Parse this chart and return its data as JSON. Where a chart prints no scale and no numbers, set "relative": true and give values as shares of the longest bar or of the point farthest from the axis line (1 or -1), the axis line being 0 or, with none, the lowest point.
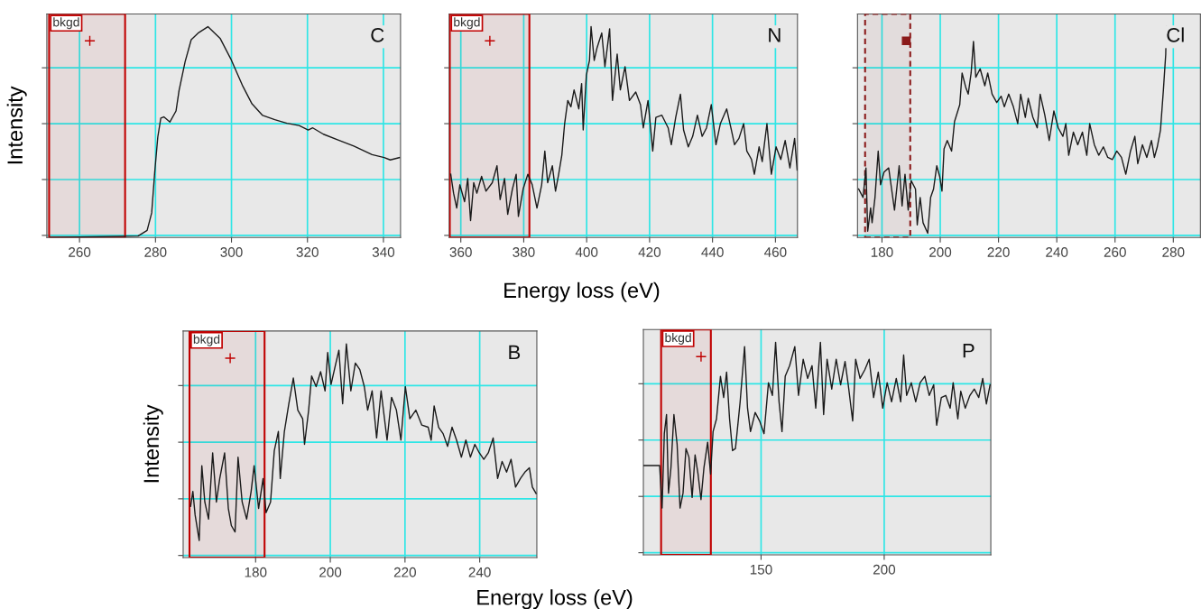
{
  "chart_data": [
    {
      "type": "line",
      "annotations": [
        "C"
      ],
      "ylabel": "Intensity",
      "relative": true,
      "grid": true,
      "tick_labels": "x",
      "color": "#1a1a1a",
      "xlim": [
        251.4,
        344.5
      ],
      "xticks": [
        260,
        280,
        300,
        320,
        340
      ],
      "bands": [
        {
          "axis": "x",
          "from": 252,
          "to": 272,
          "label": "bkgd",
          "color": "#c00000"
        }
      ],
      "x": [
        252.2,
        275.4,
        277.8,
        279,
        279.8,
        280.6,
        281.4,
        282.2,
        283.8,
        285.4,
        286.2,
        287.8,
        289.4,
        291.4,
        293.8,
        297,
        299.8,
        303,
        305.4,
        308.2,
        311.4,
        314.6,
        317.8,
        320.2,
        321.4,
        324.2,
        328.2,
        332.2,
        337,
        340.2,
        341.8,
        344.2
      ],
      "values": [
        0,
        0.007,
        0.034,
        0.117,
        0.31,
        0.476,
        0.566,
        0.572,
        0.548,
        0.6,
        0.697,
        0.834,
        0.938,
        0.972,
        1,
        0.945,
        0.848,
        0.717,
        0.634,
        0.579,
        0.559,
        0.542,
        0.531,
        0.51,
        0.52,
        0.49,
        0.462,
        0.434,
        0.393,
        0.379,
        0.368,
        0.379
      ]
    },
    {
      "type": "line",
      "annotations": [
        "N"
      ],
      "xlabel": "Energy loss (eV)",
      "relative": true,
      "grid": true,
      "tick_labels": "x",
      "color": "#1a1a1a",
      "xlim": [
        356.3,
        467
      ],
      "xticks": [
        360,
        380,
        400,
        420,
        440,
        460
      ],
      "bands": [
        {
          "axis": "x",
          "from": 356.5,
          "to": 381.8,
          "label": "bkgd",
          "color": "#c00000"
        }
      ],
      "x": [
        356.8,
        357.7,
        358.7,
        359.7,
        361.2,
        362.2,
        363.1,
        364.1,
        365.1,
        366.6,
        368.0,
        370.0,
        371.5,
        372.5,
        373.9,
        374.9,
        376.4,
        377.6,
        378.3,
        379.8,
        381.3,
        382.7,
        384.2,
        385.7,
        386.7,
        387.6,
        389.1,
        390.1,
        391.1,
        392.1,
        393.0,
        394.0,
        395.0,
        396.0,
        397.5,
        398.4,
        398.9,
        399.9,
        400.9,
        401.4,
        402.4,
        403.3,
        404.8,
        405.8,
        407.3,
        408.2,
        409.7,
        410.7,
        412.2,
        413.6,
        415.6,
        417.1,
        418.0,
        419.5,
        421.0,
        422.0,
        423.9,
        425.9,
        426.9,
        428.3,
        429.8,
        430.8,
        432.3,
        433.7,
        435.2,
        436.7,
        438.1,
        439.6,
        441.1,
        442.5,
        444.5,
        446.0,
        447.0,
        448.4,
        449.9,
        450.9,
        452.4,
        453.3,
        454.8,
        455.8,
        457.3,
        458.7,
        460.2,
        461.7,
        463.1,
        464.6,
        466.1,
        466.9
      ],
      "values": [
        0.3,
        0.21,
        0.14,
        0.25,
        0.17,
        0.28,
        0.08,
        0.26,
        0.21,
        0.29,
        0.22,
        0.26,
        0.34,
        0.18,
        0.28,
        0.11,
        0.23,
        0.3,
        0.1,
        0.23,
        0.3,
        0.25,
        0.14,
        0.25,
        0.41,
        0.26,
        0.34,
        0.22,
        0.3,
        0.39,
        0.54,
        0.65,
        0.62,
        0.7,
        0.61,
        0.73,
        0.51,
        0.77,
        0.84,
        1.0,
        0.84,
        0.9,
        0.97,
        0.81,
        0.99,
        0.65,
        0.87,
        0.7,
        0.81,
        0.65,
        0.69,
        0.63,
        0.52,
        0.65,
        0.41,
        0.57,
        0.58,
        0.52,
        0.44,
        0.57,
        0.68,
        0.51,
        0.43,
        0.48,
        0.58,
        0.48,
        0.52,
        0.63,
        0.44,
        0.54,
        0.61,
        0.51,
        0.44,
        0.47,
        0.54,
        0.41,
        0.37,
        0.3,
        0.43,
        0.36,
        0.54,
        0.3,
        0.43,
        0.37,
        0.46,
        0.33,
        0.47,
        0.32
      ]
    },
    {
      "type": "line",
      "annotations": [
        "Cl"
      ],
      "relative": true,
      "grid": true,
      "tick_labels": "x",
      "color": "#1a1a1a",
      "xlim": [
        171.6,
        289.3
      ],
      "xticks": [
        180,
        200,
        220,
        240,
        260,
        280
      ],
      "bands": [
        {
          "axis": "x",
          "from": 174.2,
          "to": 189.7,
          "color": "#8b1a1a"
        }
      ],
      "x": [
        172.0,
        173.5,
        174.5,
        175.1,
        176.1,
        176.6,
        177.6,
        178.7,
        179.5,
        180.7,
        182.3,
        183.3,
        184.3,
        185.9,
        186.9,
        187.9,
        189.0,
        190.0,
        191.5,
        192.1,
        193.1,
        194.1,
        195.7,
        196.7,
        197.7,
        198.8,
        199.8,
        200.6,
        201.3,
        202.4,
        203.9,
        204.9,
        206.7,
        207.5,
        208.8,
        209.6,
        210.6,
        211.4,
        212.2,
        213.7,
        215.3,
        216.3,
        217.8,
        219.4,
        220.9,
        222.0,
        223.5,
        225.1,
        226.6,
        227.6,
        229.2,
        230.2,
        231.8,
        233.3,
        234.3,
        235.9,
        237.4,
        239.0,
        240.5,
        242.1,
        243.1,
        244.1,
        245.7,
        247.2,
        248.8,
        250.3,
        251.3,
        252.9,
        254.4,
        256.0,
        257.5,
        259.1,
        260.6,
        262.2,
        263.7,
        265.3,
        266.8,
        267.8,
        269.4,
        270.9,
        272.5,
        273.5,
        274.5,
        275.6,
        276.6,
        277.4,
        277.6
      ],
      "values": [
        0.23,
        0.19,
        0.33,
        0.03,
        0.14,
        0.07,
        0.19,
        0.41,
        0.25,
        0.31,
        0.33,
        0.23,
        0.13,
        0.34,
        0.15,
        0.3,
        0.13,
        0.27,
        0.23,
        0.06,
        0.19,
        0.07,
        0.02,
        0.19,
        0.23,
        0.34,
        0.29,
        0.22,
        0.42,
        0.46,
        0.41,
        0.55,
        0.63,
        0.78,
        0.71,
        0.68,
        0.78,
        0.93,
        0.76,
        0.8,
        0.72,
        0.78,
        0.68,
        0.64,
        0.67,
        0.62,
        0.68,
        0.62,
        0.54,
        0.68,
        0.57,
        0.66,
        0.57,
        0.52,
        0.68,
        0.58,
        0.46,
        0.6,
        0.52,
        0.48,
        0.54,
        0.39,
        0.5,
        0.44,
        0.5,
        0.39,
        0.54,
        0.44,
        0.39,
        0.43,
        0.38,
        0.37,
        0.41,
        0.38,
        0.3,
        0.41,
        0.48,
        0.35,
        0.44,
        0.38,
        0.46,
        0.38,
        0.43,
        0.51,
        0.7,
        0.87,
        1.0
      ]
    },
    {
      "type": "line",
      "annotations": [
        "B"
      ],
      "ylabel": "Intensity",
      "xlabel": "Energy loss (eV)",
      "relative": true,
      "grid": true,
      "tick_labels": "x",
      "color": "#1a1a1a",
      "xlim": [
        160.6,
        255.3
      ],
      "xticks": [
        180,
        200,
        220,
        240
      ],
      "bands": [
        {
          "axis": "x",
          "from": 162.3,
          "to": 182.4,
          "label": "bkgd",
          "color": "#c00000"
        }
      ],
      "x": [
        162.6,
        163.2,
        163.8,
        164.9,
        165.6,
        166.4,
        167.4,
        168.5,
        169.5,
        170.4,
        171.7,
        172.7,
        173.5,
        174.5,
        175.3,
        176.4,
        177.6,
        178.8,
        179.6,
        180.8,
        182.0,
        182.8,
        184.0,
        185.0,
        186.1,
        186.6,
        187.7,
        188.9,
        190.1,
        191.3,
        192.6,
        193.1,
        194.2,
        195.0,
        196.2,
        197.4,
        198.6,
        199.3,
        200.2,
        201.5,
        202.3,
        203.3,
        204.3,
        205.5,
        206.7,
        207.9,
        209.1,
        210.0,
        211.2,
        212.4,
        213.6,
        215.2,
        216.4,
        217.7,
        218.9,
        220.1,
        221.3,
        222.9,
        224.5,
        226.2,
        227.0,
        227.8,
        229.0,
        230.2,
        231.4,
        232.6,
        233.8,
        235.1,
        236.3,
        237.5,
        238.7,
        239.9,
        241.1,
        242.3,
        243.6,
        244.8,
        246.0,
        247.2,
        248.4,
        249.6,
        250.9,
        252.1,
        253.3,
        254.1,
        255.1
      ],
      "values": [
        0.24,
        0.31,
        0.2,
        0.08,
        0.43,
        0.26,
        0.18,
        0.49,
        0.26,
        0.37,
        0.49,
        0.23,
        0.15,
        0.12,
        0.47,
        0.26,
        0.18,
        0.31,
        0.43,
        0.23,
        0.37,
        0.21,
        0.26,
        0.5,
        0.59,
        0.37,
        0.59,
        0.72,
        0.84,
        0.69,
        0.65,
        0.53,
        0.69,
        0.85,
        0.8,
        0.87,
        0.78,
        0.96,
        0.81,
        0.91,
        0.97,
        0.72,
        1.0,
        0.78,
        0.91,
        0.88,
        0.8,
        0.69,
        0.78,
        0.56,
        0.78,
        0.55,
        0.75,
        0.69,
        0.55,
        0.8,
        0.65,
        0.69,
        0.62,
        0.61,
        0.55,
        0.71,
        0.61,
        0.58,
        0.52,
        0.61,
        0.55,
        0.47,
        0.55,
        0.47,
        0.53,
        0.49,
        0.46,
        0.49,
        0.56,
        0.37,
        0.45,
        0.4,
        0.46,
        0.33,
        0.37,
        0.4,
        0.42,
        0.33,
        0.3
      ]
    },
    {
      "type": "line",
      "annotations": [
        "P"
      ],
      "relative": true,
      "grid": true,
      "tick_labels": "x",
      "color": "#1a1a1a",
      "xlim": [
        102.2,
        243.3
      ],
      "xticks": [
        150,
        200
      ],
      "bands": [
        {
          "axis": "x",
          "from": 109.4,
          "to": 129.6,
          "label": "bkgd",
          "color": "#c00000"
        }
      ],
      "x": [
        102.4,
        108.8,
        109.8,
        110.7,
        111.6,
        112.4,
        113.4,
        114.6,
        115.9,
        117.1,
        118.3,
        119.5,
        120.7,
        122.0,
        123.2,
        124.4,
        125.6,
        126.8,
        128.3,
        129.5,
        130.5,
        131.9,
        133.5,
        134.8,
        136.0,
        137.2,
        138.4,
        139.6,
        141.5,
        143.3,
        144.5,
        145.7,
        147.6,
        149.4,
        151.2,
        153.0,
        154.6,
        155.9,
        157.3,
        158.5,
        159.8,
        161.6,
        163.7,
        165.2,
        167.1,
        168.9,
        170.7,
        172.2,
        174.1,
        175.4,
        176.8,
        178.7,
        180.5,
        182.3,
        184.1,
        185.4,
        187.2,
        188.4,
        190.2,
        192.1,
        193.9,
        195.7,
        197.6,
        199.4,
        201.2,
        203.0,
        204.9,
        206.7,
        207.9,
        209.1,
        211.0,
        212.8,
        214.6,
        216.5,
        218.3,
        220.1,
        221.3,
        223.2,
        225.0,
        226.8,
        228.0,
        229.9,
        231.1,
        232.9,
        234.8,
        236.6,
        238.4,
        240.0,
        241.5,
        243.0
      ],
      "values": [
        0.42,
        0.42,
        0.22,
        0.57,
        0.66,
        0.29,
        0.41,
        0.66,
        0.52,
        0.22,
        0.29,
        0.5,
        0.46,
        0.27,
        0.47,
        0.38,
        0.26,
        0.41,
        0.53,
        0.38,
        0.58,
        0.64,
        0.84,
        0.74,
        0.86,
        0.64,
        0.49,
        0.5,
        0.72,
        0.98,
        0.69,
        0.58,
        0.67,
        0.63,
        0.57,
        0.81,
        0.75,
        1.0,
        0.72,
        0.58,
        0.84,
        0.89,
        0.98,
        0.75,
        0.92,
        0.83,
        0.89,
        0.69,
        1.0,
        0.66,
        0.92,
        0.78,
        0.92,
        0.8,
        0.91,
        0.8,
        0.63,
        0.92,
        0.83,
        0.87,
        0.92,
        0.74,
        0.86,
        0.69,
        0.81,
        0.72,
        0.83,
        0.72,
        0.94,
        0.75,
        0.81,
        0.72,
        0.81,
        0.84,
        0.75,
        0.8,
        0.61,
        0.74,
        0.75,
        0.69,
        0.81,
        0.64,
        0.77,
        0.69,
        0.75,
        0.78,
        0.74,
        0.83,
        0.71,
        0.8
      ]
    }
  ]
}
